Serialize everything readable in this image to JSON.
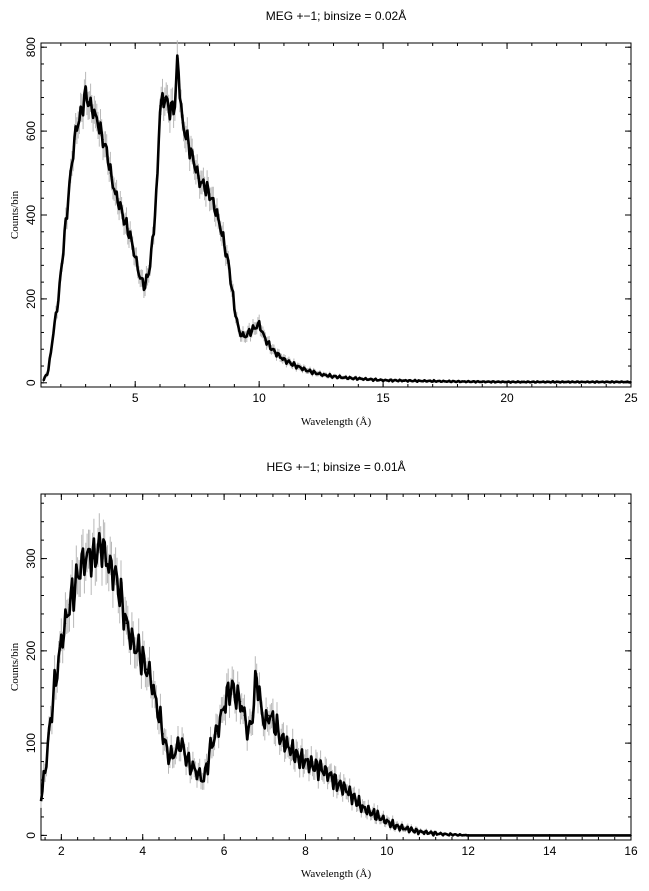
{
  "chart_data": [
    {
      "type": "line",
      "title": "MEG +−1; binsize = 0.02Å",
      "xlabel": "Wavelength (Å)",
      "ylabel": "Counts/bin",
      "xlim": [
        1.2,
        25
      ],
      "ylim": [
        -10,
        810
      ],
      "xticks": [
        5,
        10,
        15,
        20,
        25
      ],
      "yticks": [
        0,
        200,
        400,
        600,
        800
      ],
      "grid": false,
      "legend": "none",
      "colors": {
        "line": "#000000",
        "error_band": "#b8b8b8"
      },
      "series": [
        {
          "x": [
            1.3,
            1.5,
            1.7,
            1.9,
            2.0,
            2.2,
            2.4,
            2.6,
            2.8,
            3.0,
            3.1,
            3.3,
            3.5,
            3.7,
            3.9,
            4.0,
            4.2,
            4.4,
            4.6,
            4.8,
            5.0,
            5.2,
            5.4,
            5.6,
            5.8,
            5.9,
            6.0,
            6.2,
            6.4,
            6.6,
            6.7,
            6.8,
            6.9,
            7.0,
            7.2,
            7.4,
            7.6,
            7.8,
            8.0,
            8.2,
            8.4,
            8.6,
            8.8,
            9.0,
            9.2,
            9.4,
            9.6,
            9.8,
            10.0,
            10.2,
            10.4,
            10.6,
            10.8,
            11.0,
            11.5,
            12.0,
            12.5,
            13.0,
            13.5,
            14.0,
            14.5,
            15.0,
            16.0,
            17.0,
            18.0,
            20.0,
            22.0,
            25.0
          ],
          "y": [
            5,
            30,
            120,
            200,
            260,
            380,
            500,
            600,
            640,
            690,
            670,
            650,
            620,
            580,
            540,
            500,
            450,
            420,
            380,
            350,
            300,
            250,
            230,
            280,
            400,
            500,
            660,
            680,
            650,
            660,
            770,
            700,
            620,
            600,
            560,
            520,
            480,
            470,
            450,
            420,
            380,
            330,
            270,
            180,
            120,
            110,
            120,
            130,
            140,
            110,
            90,
            75,
            65,
            55,
            40,
            28,
            20,
            15,
            12,
            10,
            8,
            6,
            5,
            4,
            3,
            2,
            2,
            2
          ]
        }
      ]
    },
    {
      "type": "line",
      "title": "HEG +−1; binsize = 0.01Å",
      "xlabel": "Wavelength (Å)",
      "ylabel": "Counts/bin",
      "xlim": [
        1.5,
        16
      ],
      "ylim": [
        -5,
        370
      ],
      "xticks": [
        2,
        4,
        6,
        8,
        10,
        12,
        14,
        16
      ],
      "yticks": [
        0,
        100,
        200,
        300
      ],
      "grid": false,
      "legend": "none",
      "colors": {
        "line": "#000000",
        "error_band": "#b8b8b8"
      },
      "series": [
        {
          "x": [
            1.5,
            1.6,
            1.7,
            1.8,
            1.9,
            2.0,
            2.1,
            2.2,
            2.3,
            2.4,
            2.5,
            2.6,
            2.7,
            2.8,
            2.9,
            3.0,
            3.1,
            3.2,
            3.3,
            3.4,
            3.5,
            3.6,
            3.7,
            3.8,
            3.9,
            4.0,
            4.1,
            4.2,
            4.3,
            4.4,
            4.5,
            4.6,
            4.7,
            4.8,
            4.9,
            5.0,
            5.1,
            5.2,
            5.3,
            5.4,
            5.5,
            5.6,
            5.7,
            5.8,
            5.9,
            6.0,
            6.1,
            6.2,
            6.3,
            6.4,
            6.5,
            6.6,
            6.7,
            6.8,
            6.9,
            7.0,
            7.1,
            7.2,
            7.3,
            7.4,
            7.6,
            7.8,
            8.0,
            8.2,
            8.4,
            8.6,
            8.8,
            9.0,
            9.2,
            9.4,
            9.6,
            9.8,
            10.0,
            10.2,
            10.4,
            10.6,
            10.8,
            11.0,
            11.2,
            11.5,
            12.0,
            13.0,
            14.0,
            15.0,
            16.0
          ],
          "y": [
            40,
            70,
            110,
            150,
            180,
            210,
            230,
            250,
            265,
            280,
            295,
            300,
            305,
            300,
            310,
            315,
            300,
            290,
            285,
            270,
            250,
            230,
            215,
            205,
            200,
            190,
            180,
            170,
            150,
            130,
            110,
            90,
            85,
            90,
            100,
            95,
            80,
            75,
            70,
            65,
            60,
            80,
            100,
            110,
            125,
            140,
            155,
            160,
            150,
            145,
            130,
            110,
            130,
            175,
            140,
            120,
            130,
            125,
            115,
            105,
            95,
            85,
            80,
            75,
            72,
            65,
            55,
            50,
            40,
            30,
            25,
            20,
            15,
            10,
            8,
            6,
            4,
            3,
            2,
            1,
            0,
            0,
            0,
            0,
            0
          ]
        }
      ]
    }
  ]
}
